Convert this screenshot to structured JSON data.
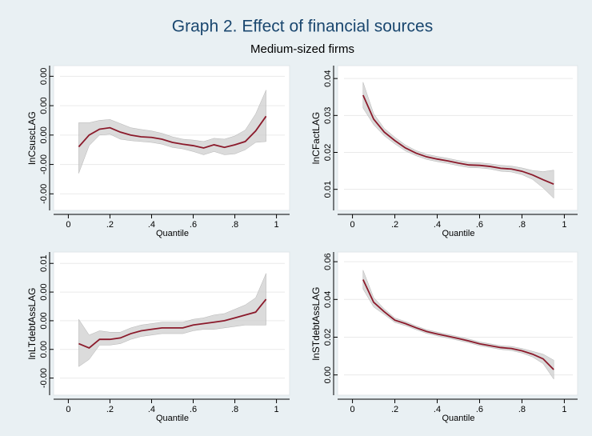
{
  "title": "Graph 2. Effect of financial sources",
  "subtitle": "Medium-sized firms",
  "chart_data": [
    {
      "type": "line",
      "y_label": "lnCsuscLAG",
      "x_label": "Quantile",
      "color": "#8b1a2b",
      "band_color": "#cfcfcf",
      "grid": true,
      "x": [
        0.05,
        0.1,
        0.15,
        0.2,
        0.25,
        0.3,
        0.35,
        0.4,
        0.45,
        0.5,
        0.55,
        0.6,
        0.65,
        0.7,
        0.75,
        0.8,
        0.85,
        0.9,
        0.95
      ],
      "values": [
        -0.0004,
        0,
        0.0002,
        0.00025,
        0.0001,
        0,
        -6e-05,
        -8e-05,
        -0.00014,
        -0.00025,
        -0.00031,
        -0.00036,
        -0.00044,
        -0.00033,
        -0.00042,
        -0.00033,
        -0.00022,
        0.00014,
        0.00064
      ],
      "lower": [
        -0.0013,
        -0.00036,
        0,
        3e-05,
        -0.00014,
        -0.00019,
        -0.00022,
        -0.00025,
        -0.00031,
        -0.00042,
        -0.00047,
        -0.00056,
        -0.00067,
        -0.00056,
        -0.00067,
        -0.00064,
        -0.0005,
        -0.00025,
        -0.00022
      ],
      "upper": [
        0.00042,
        0.00042,
        0.0005,
        0.00053,
        0.00039,
        0.00025,
        0.00019,
        0.00014,
        6e-05,
        -6e-05,
        -0.00014,
        -0.00017,
        -0.00022,
        -0.00011,
        -0.00014,
        -3e-05,
        0.00017,
        0.00072,
        0.00153
      ],
      "xlim": [
        -0.04,
        1.04
      ],
      "ylim": [
        -0.0024,
        0.0022
      ],
      "xticks": [
        0,
        {
          "value": 0.2,
          "label": ".2"
        },
        {
          "value": 0.4,
          "label": ".4"
        },
        {
          "value": 0.6,
          "label": ".6"
        },
        {
          "value": 0.8,
          "label": ".8"
        },
        1
      ],
      "yticks": [
        {
          "value": -0.002,
          "label": "-0.00"
        },
        {
          "value": -0.001,
          "label": "-0.00"
        },
        {
          "value": 0,
          "label": "0.00"
        },
        {
          "value": 0.001,
          "label": "0.00"
        },
        {
          "value": 0.002,
          "label": "0.00"
        }
      ]
    },
    {
      "type": "line",
      "y_label": "lnCFactLAG",
      "x_label": "Quantile",
      "color": "#8b1a2b",
      "band_color": "#cfcfcf",
      "grid": true,
      "x": [
        0.05,
        0.1,
        0.15,
        0.2,
        0.25,
        0.3,
        0.35,
        0.4,
        0.45,
        0.5,
        0.55,
        0.6,
        0.65,
        0.7,
        0.75,
        0.8,
        0.85,
        0.9,
        0.95
      ],
      "values": [
        0.0355,
        0.029,
        0.0255,
        0.0232,
        0.0212,
        0.0198,
        0.0188,
        0.0182,
        0.0177,
        0.0171,
        0.0166,
        0.0165,
        0.0162,
        0.0157,
        0.0155,
        0.0149,
        0.0139,
        0.0126,
        0.0114
      ],
      "lower": [
        0.032,
        0.0275,
        0.0245,
        0.0223,
        0.0204,
        0.0191,
        0.0181,
        0.0175,
        0.017,
        0.0164,
        0.0159,
        0.0158,
        0.0155,
        0.0149,
        0.0147,
        0.014,
        0.0127,
        0.0104,
        0.0076
      ],
      "upper": [
        0.039,
        0.0305,
        0.0265,
        0.0241,
        0.022,
        0.0205,
        0.0195,
        0.0189,
        0.0184,
        0.0178,
        0.0173,
        0.0172,
        0.0169,
        0.0165,
        0.0163,
        0.0158,
        0.0151,
        0.0148,
        0.0152
      ],
      "xlim": [
        -0.04,
        1.04
      ],
      "ylim": [
        0.0056,
        0.0422
      ],
      "xticks": [
        0,
        {
          "value": 0.2,
          "label": ".2"
        },
        {
          "value": 0.4,
          "label": ".4"
        },
        {
          "value": 0.6,
          "label": ".6"
        },
        {
          "value": 0.8,
          "label": ".8"
        },
        1
      ],
      "yticks": [
        0.01,
        0.02,
        0.03,
        0.04
      ]
    },
    {
      "type": "line",
      "y_label": "lnLTdebtAssLAG",
      "x_label": "Quantile",
      "color": "#8b1a2b",
      "band_color": "#cfcfcf",
      "grid": true,
      "x": [
        0.05,
        0.1,
        0.15,
        0.2,
        0.25,
        0.3,
        0.35,
        0.4,
        0.45,
        0.5,
        0.55,
        0.6,
        0.65,
        0.7,
        0.75,
        0.8,
        0.85,
        0.9,
        0.95
      ],
      "values": [
        0.0004,
        0.0001,
        0.0007,
        0.0007,
        0.0008,
        0.0011,
        0.0013,
        0.0014,
        0.0015,
        0.0015,
        0.0015,
        0.0017,
        0.0018,
        0.0019,
        0.002,
        0.0022,
        0.0024,
        0.0026,
        0.0035
      ],
      "lower": [
        -0.0012,
        -0.0007,
        0.0003,
        0.0003,
        0.0004,
        0.0007,
        0.0009,
        0.001,
        0.0011,
        0.0011,
        0.0011,
        0.0013,
        0.0014,
        0.0014,
        0.0015,
        0.0016,
        0.0017,
        0.0017,
        0.0017
      ],
      "upper": [
        0.0021,
        0.001,
        0.0013,
        0.0012,
        0.0012,
        0.0015,
        0.0017,
        0.0018,
        0.0019,
        0.0019,
        0.0019,
        0.0021,
        0.0022,
        0.0024,
        0.0025,
        0.0028,
        0.0031,
        0.0036,
        0.0053
      ],
      "xlim": [
        -0.04,
        1.04
      ],
      "ylim": [
        -0.00286,
        0.00646
      ],
      "xticks": [
        0,
        {
          "value": 0.2,
          "label": ".2"
        },
        {
          "value": 0.4,
          "label": ".4"
        },
        {
          "value": 0.6,
          "label": ".6"
        },
        {
          "value": 0.8,
          "label": ".8"
        },
        1
      ],
      "yticks": [
        {
          "value": -0.002,
          "label": "-0.00"
        },
        {
          "value": 0,
          "label": "0.00"
        },
        {
          "value": 0.002,
          "label": "0.00"
        },
        {
          "value": 0.004,
          "label": "0.00"
        },
        {
          "value": 0.006,
          "label": "0.01"
        }
      ]
    },
    {
      "type": "line",
      "y_label": "lnSTdebtAssLAG",
      "x_label": "Quantile",
      "color": "#8b1a2b",
      "band_color": "#cfcfcf",
      "grid": true,
      "x": [
        0.05,
        0.1,
        0.15,
        0.2,
        0.25,
        0.3,
        0.35,
        0.4,
        0.45,
        0.5,
        0.55,
        0.6,
        0.65,
        0.7,
        0.75,
        0.8,
        0.85,
        0.9,
        0.95
      ],
      "values": [
        0.0505,
        0.0385,
        0.0335,
        0.029,
        0.0272,
        0.025,
        0.023,
        0.0217,
        0.0205,
        0.0193,
        0.018,
        0.0165,
        0.0155,
        0.0145,
        0.014,
        0.0128,
        0.011,
        0.0085,
        0.0028
      ],
      "lower": [
        0.0455,
        0.036,
        0.032,
        0.0278,
        0.0261,
        0.024,
        0.022,
        0.0207,
        0.0195,
        0.0183,
        0.017,
        0.0155,
        0.0145,
        0.0135,
        0.0129,
        0.0116,
        0.0095,
        0.006,
        -0.0022
      ],
      "upper": [
        0.0555,
        0.041,
        0.035,
        0.0302,
        0.0283,
        0.026,
        0.024,
        0.0227,
        0.0215,
        0.0203,
        0.019,
        0.0175,
        0.0165,
        0.0155,
        0.0151,
        0.014,
        0.0125,
        0.011,
        0.0078
      ],
      "xlim": [
        -0.04,
        1.04
      ],
      "ylim": [
        -0.0082,
        0.0626
      ],
      "xticks": [
        0,
        {
          "value": 0.2,
          "label": ".2"
        },
        {
          "value": 0.4,
          "label": ".4"
        },
        {
          "value": 0.6,
          "label": ".6"
        },
        {
          "value": 0.8,
          "label": ".8"
        },
        1
      ],
      "yticks": [
        {
          "value": 0,
          "label": "0.00"
        },
        0.02,
        0.04,
        0.06
      ]
    }
  ]
}
